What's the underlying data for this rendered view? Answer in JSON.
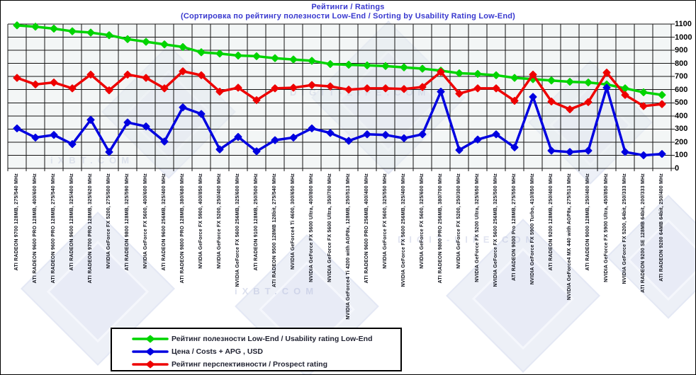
{
  "header": {
    "title": "Рейтинги / Ratings",
    "subtitle": "(Сортировка по рейтингу полезности Low-End / Sorting by Usability Rating Low-End)"
  },
  "watermarks": {
    "ixbt": "iXBT.COM",
    "digitlife": "DIGIT-LIFE.COM"
  },
  "chart_data": {
    "type": "line",
    "title": "Рейтинги / Ratings",
    "subtitle": "(Сортировка по рейтингу полезности Low-End / Sorting by Usability Rating Low-End)",
    "xlabel": "",
    "ylabel": "",
    "ylim": [
      0,
      1100
    ],
    "ytick_step": 100,
    "yticks": [
      1100,
      1000,
      900,
      800,
      700,
      600,
      500,
      400,
      300,
      200,
      100,
      0
    ],
    "grid": true,
    "legend_position": "bottom",
    "categories": [
      "ATI RADEON 9700 128MB, 275/540 MHz",
      "ATI RADEON 9600 PRO 128MB, 400/600 MHz",
      "ATI RADEON 9600 PRO 128MB, 275/540 MHz",
      "ATI RADEON 9600 128MB, 325/400 MHz",
      "ATI RADEON 9700 PRO 128MB, 325/620 MHz",
      "NVIDIA GeForce FX 5200, 275/500 MHz",
      "ATI RADEON 9800 128MB, 325/590 MHz",
      "NVIDIA GeForce FX 5600, 400/600 MHz",
      "ATI RADEON 9600 256MB, 325/400 MHz",
      "ATI RADEON 9800 PRO 128MB, 380/680 MHz",
      "NVIDIA GeForce FX 5900, 400/850 MHz",
      "NVIDIA GeForce FX 5200, 250/400 MHz",
      "NVIDIA GeForce FX 5600 256MB, 325/600 MHz",
      "ATI RADEON 9100 128MB, 250/500 MHz",
      "ATI RADEON 9500 128MB 128bit, 275/540 MHz",
      "NVIDIA GeForce4 Ti 4600, 300/650 MHz",
      "NVIDIA GeForce FX 5600 Ultra, 400/800 MHz",
      "NVIDIA GeForce FX 5600 Ultra, 350/700 MHz",
      "NVIDIA GeForce4 Ti 4200 with AGP8x, 128MB, 250/513 MHz",
      "ATI RADEON 9600 PRO 256MB, 400/400 MHz",
      "NVIDIA GeForce FX 5600, 325/550 MHz",
      "NVIDIA GeForce FX 5600 256MB, 325/400 MHz",
      "NVIDIA GeForce FX 5600, 325/600 MHz",
      "ATI RADEON 9800 PRO 256MB, 380/700 MHz",
      "NVIDIA GeForce FX 5200, 250/300 MHz",
      "NVIDIA GeForce FX 5200 Ultra, 325/650 MHz",
      "NVIDIA GeForce FX 5600 256MB, 325/500 MHz",
      "ATI RADEON 9000 Pro 128MB, 275/550 MHz",
      "NVIDIA GeForce FX 5900 Turbo, 410/850 MHz",
      "ATI RADEON 9200 128MB, 250/400 MHz",
      "NVIDIA GeForce4 MX 440 with AGP8x, 275/513 MHz",
      "ATI RADEON 9000 128MB, 250/400 MHz",
      "NVIDIA GeForce FX 5900 Ultra, 450/850 MHz",
      "NVIDIA GeForce FX 5200, 64bit, 250/333 MHz",
      "ATI RADEON 9200 SE 128MB 64bit, 200/333 MHz",
      "ATI RADEON 9200 64MB 64bit, 250/400 MHz"
    ],
    "series": [
      {
        "name": "Рейтинг полезности Low-End / Usability rating Low-End",
        "color": "#00d400",
        "values": [
          1090,
          1080,
          1065,
          1045,
          1035,
          1015,
          985,
          965,
          945,
          925,
          885,
          875,
          860,
          855,
          840,
          830,
          820,
          795,
          790,
          785,
          780,
          770,
          760,
          745,
          725,
          720,
          710,
          690,
          680,
          670,
          660,
          655,
          640,
          610,
          580,
          560
        ]
      },
      {
        "name": "Цена / Costs + APG , USD",
        "color": "#0000e0",
        "values": [
          305,
          235,
          255,
          185,
          370,
          125,
          350,
          320,
          205,
          465,
          415,
          145,
          240,
          130,
          215,
          235,
          305,
          270,
          210,
          260,
          255,
          230,
          260,
          585,
          140,
          220,
          260,
          160,
          545,
          135,
          125,
          135,
          615,
          125,
          100,
          110
        ]
      },
      {
        "name": "Рейтинг перспективности / Prospect rating",
        "color": "#ee0000",
        "values": [
          690,
          640,
          655,
          610,
          715,
          595,
          715,
          690,
          610,
          740,
          710,
          585,
          615,
          520,
          610,
          615,
          635,
          625,
          600,
          610,
          610,
          605,
          620,
          735,
          570,
          610,
          610,
          515,
          715,
          510,
          450,
          505,
          730,
          560,
          475,
          490
        ]
      }
    ]
  }
}
